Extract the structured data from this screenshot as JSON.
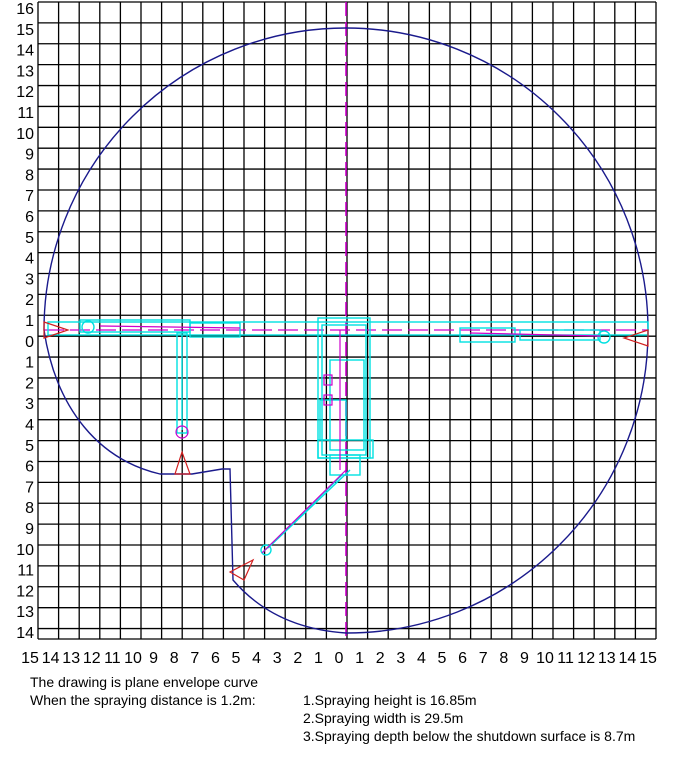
{
  "axes": {
    "y_labels": [
      "16",
      "15",
      "14",
      "13",
      "12",
      "11",
      "10",
      "9",
      "8",
      "7",
      "6",
      "5",
      "4",
      "3",
      "2",
      "1",
      "0",
      "1",
      "2",
      "3",
      "4",
      "5",
      "6",
      "7",
      "8",
      "9",
      "10",
      "11",
      "12",
      "13",
      "14"
    ],
    "x_labels": [
      "15",
      "14",
      "13",
      "12",
      "11",
      "10",
      "9",
      "8",
      "7",
      "6",
      "5",
      "4",
      "3",
      "2",
      "1",
      "0",
      "1",
      "2",
      "3",
      "4",
      "5",
      "6",
      "7",
      "8",
      "9",
      "10",
      "11",
      "12",
      "13",
      "14",
      "15"
    ]
  },
  "caption": {
    "line1": "The drawing is plane envelope curve",
    "line2": "When the spraying distance is 1.2m:",
    "notes": [
      "1.Spraying height is 16.85m",
      "2.Spraying width is 29.5m",
      "3.Spraying depth below the shutdown surface is 8.7m"
    ]
  },
  "colors": {
    "grid": "#000000",
    "envelope": "#1a1a8c",
    "machine": "#00e5e5",
    "centerline": "#cc00cc",
    "nozzle": "#d22020"
  }
}
